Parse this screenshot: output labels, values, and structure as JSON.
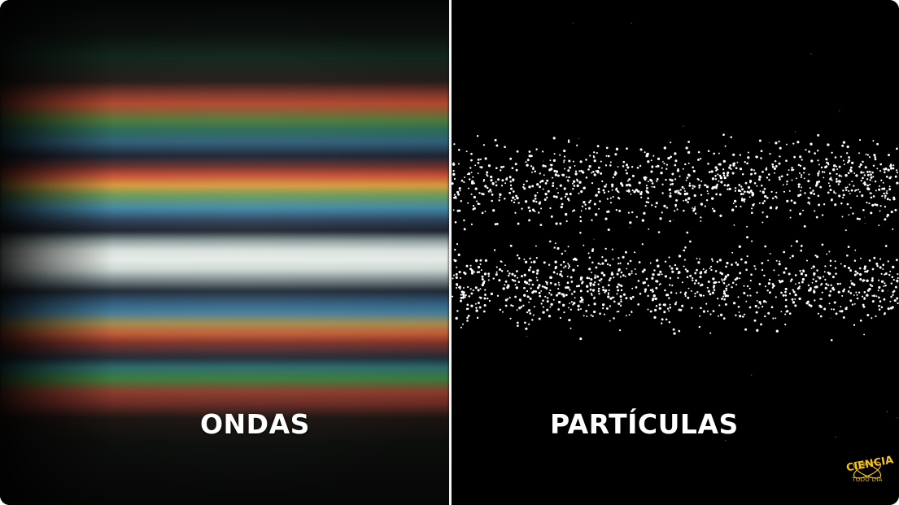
{
  "panels": {
    "left": {
      "caption": "ONDAS"
    },
    "right": {
      "caption": "PARTÍCULAS"
    }
  },
  "logo": {
    "title": "CIENCIA",
    "subtitle": "TODO DÍA",
    "color": "#f5c518"
  },
  "colors": {
    "divider": "#f2f2f2",
    "caption": "#ffffff",
    "particles": "#ffffff",
    "background": "#000000"
  },
  "icons": {
    "logo": "atom-logo-icon"
  }
}
